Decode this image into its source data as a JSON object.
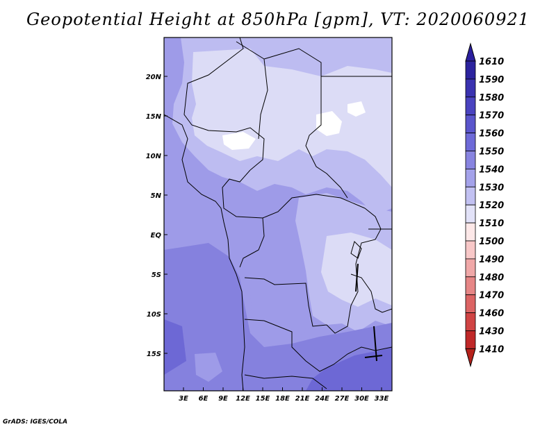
{
  "title": "Geopotential Height at 850hPa [gpm], VT: 2020060921",
  "credit": "GrADS: IGES/COLA",
  "map": {
    "lat_labels": [
      "20N",
      "15N",
      "10N",
      "5N",
      "EQ",
      "5S",
      "10S",
      "15S"
    ],
    "lon_labels": [
      "3E",
      "6E",
      "9E",
      "12E",
      "15E",
      "18E",
      "21E",
      "24E",
      "27E",
      "30E",
      "33E"
    ]
  },
  "colorbar": {
    "levels": [
      "1610",
      "1590",
      "1580",
      "1570",
      "1560",
      "1550",
      "1540",
      "1530",
      "1520",
      "1510",
      "1500",
      "1490",
      "1480",
      "1470",
      "1460",
      "1430",
      "1410"
    ],
    "top_arrow_color": "#2b1f9e",
    "bottom_arrow_color": "#b5211b",
    "swatch_colors": [
      "#2c239e",
      "#3a32b0",
      "#4a43c0",
      "#5a55cc",
      "#6e6ad8",
      "#8884e0",
      "#a4a2ea",
      "#c2c1f2",
      "#e2e2f8",
      "#fde8e8",
      "#f8c8c8",
      "#f0a8a8",
      "#e68686",
      "#dc6464",
      "#d04444",
      "#c02828"
    ]
  },
  "fill_colors": {
    "level_1510": "#ffffff",
    "level_1520": "#dcdcf6",
    "level_1530": "#bdbcf1",
    "level_1540": "#9e9be8",
    "level_1550": "#8581de",
    "level_1560": "#6d68d5"
  }
}
